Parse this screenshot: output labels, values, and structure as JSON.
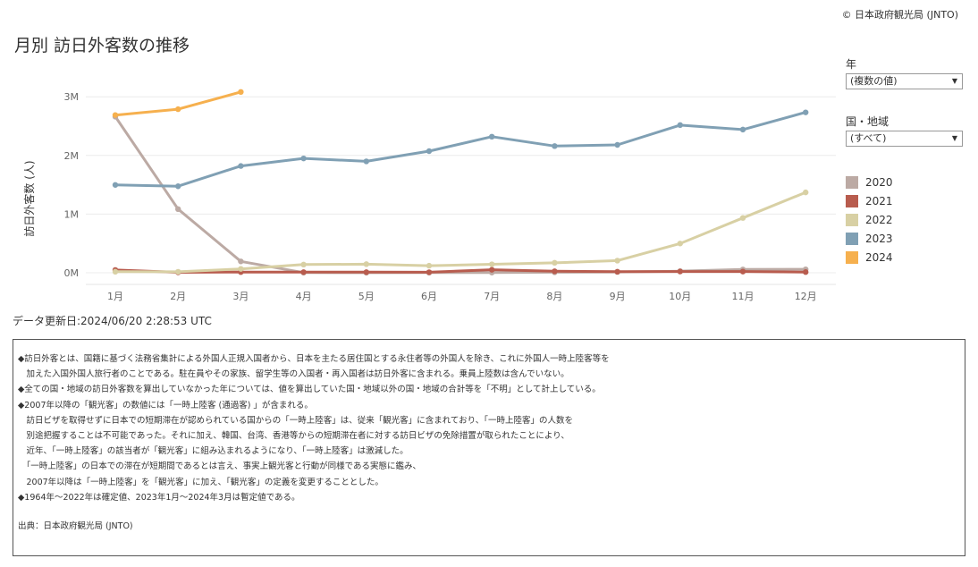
{
  "copyright": "© 日本政府観光局 (JNTO)",
  "title": "月別 訪日外客数の推移",
  "filters": {
    "year_label": "年",
    "year_value": "(複数の値)",
    "region_label": "国・地域",
    "region_value": "(すべて)"
  },
  "updated": "データ更新日:2024/06/20 2:28:53 UTC",
  "notes": [
    "◆訪日外客とは、国籍に基づく法務省集計による外国人正規入国者から、日本を主たる居住国とする永住者等の外国人を除き、これに外国人一時上陸客等を",
    "　加えた入国外国人旅行者のことである。駐在員やその家族、留学生等の入国者・再入国者は訪日外客に含まれる。乗員上陸数は含んでいない。",
    "◆全ての国・地域の訪日外客数を算出していなかった年については、値を算出していた国・地域以外の国・地域の合計等を「不明」として計上している。",
    "◆2007年以降の「観光客」の数値には「一時上陸客 (通過客) 」が含まれる。",
    "　訪日ビザを取得せずに日本での短期滞在が認められている国からの「一時上陸客」は、従来「観光客」に含まれており、「一時上陸客」の人数を",
    "　別途把握することは不可能であった。それに加え、韓国、台湾、香港等からの短期滞在者に対する訪日ビザの免除措置が取られたことにより、",
    "　近年、「一時上陸客」の該当者が「観光客」に組み込まれるようになり、「一時上陸客」は激減した。",
    "　「一時上陸客」の日本での滞在が短期間であるとは言え、事実上観光客と行動が同様である実態に鑑み、",
    "　2007年以降は「一時上陸客」を「観光客」に加え、「観光客」の定義を変更することとした。",
    "◆1964年～2022年は確定値、2023年1月～2024年3月は暫定値である。"
  ],
  "source": "出典：日本政府観光局 (JNTO)",
  "chart_data": {
    "type": "line",
    "title": "月別 訪日外客数の推移",
    "xlabel": "",
    "ylabel": "訪日外客数 (人)",
    "categories": [
      "1月",
      "2月",
      "3月",
      "4月",
      "5月",
      "6月",
      "7月",
      "8月",
      "9月",
      "10月",
      "11月",
      "12月"
    ],
    "ylim": [
      0,
      3300000
    ],
    "yticks": [
      0,
      1000000,
      2000000,
      3000000
    ],
    "ytick_labels": [
      "0M",
      "1M",
      "2M",
      "3M"
    ],
    "grid": true,
    "legend": "right",
    "series": [
      {
        "name": "2020",
        "color": "#bcaaa4",
        "values": [
          2661000,
          1085000,
          193700,
          2900,
          1700,
          2600,
          3800,
          8700,
          13700,
          27400,
          56700,
          58700
        ]
      },
      {
        "name": "2021",
        "color": "#b85c4e",
        "values": [
          46500,
          7400,
          12300,
          10900,
          10000,
          9300,
          51100,
          25900,
          17700,
          22100,
          20700,
          12100
        ]
      },
      {
        "name": "2022",
        "color": "#d8d0a4",
        "values": [
          17800,
          16700,
          66100,
          139500,
          147000,
          120400,
          144500,
          169900,
          206700,
          498600,
          934500,
          1370000
        ]
      },
      {
        "name": "2023",
        "color": "#80a0b4",
        "values": [
          1497000,
          1475000,
          1820000,
          1949000,
          1899000,
          2073000,
          2320000,
          2160000,
          2180000,
          2517000,
          2441000,
          2734000
        ]
      },
      {
        "name": "2024",
        "color": "#f6b04e",
        "values": [
          2688000,
          2788000,
          3082000,
          null,
          null,
          null,
          null,
          null,
          null,
          null,
          null,
          null
        ]
      }
    ]
  }
}
